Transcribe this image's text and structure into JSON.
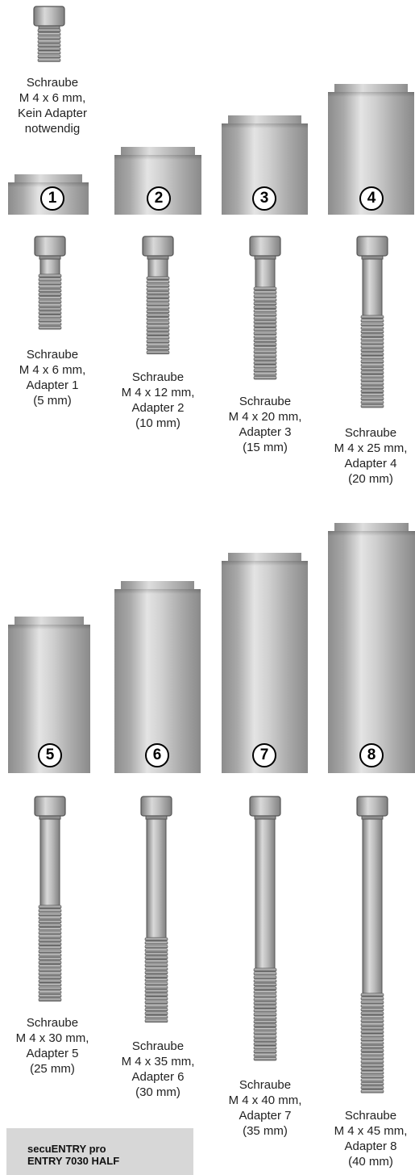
{
  "top_screw": {
    "caption": "Schraube\nM 4 x 6 mm,\nKein Adapter\nnotwendig"
  },
  "items": [
    {
      "number": "1",
      "caption": "Schraube\nM 4 x 6 mm,\nAdapter 1\n(5 mm)"
    },
    {
      "number": "2",
      "caption": "Schraube\nM 4 x 12 mm,\nAdapter 2\n(10 mm)"
    },
    {
      "number": "3",
      "caption": "Schraube\nM 4 x 20 mm,\nAdapter 3\n(15 mm)"
    },
    {
      "number": "4",
      "caption": "Schraube\nM 4 x 25 mm,\nAdapter 4\n(20 mm)"
    },
    {
      "number": "5",
      "caption": "Schraube\nM 4 x 30 mm,\nAdapter 5\n(25 mm)"
    },
    {
      "number": "6",
      "caption": "Schraube\nM 4 x 35 mm,\nAdapter 6\n(30 mm)"
    },
    {
      "number": "7",
      "caption": "Schraube\nM 4 x 40 mm,\nAdapter 7\n(35 mm)"
    },
    {
      "number": "8",
      "caption": "Schraube\nM 4 x 45 mm,\nAdapter 8\n(40 mm)"
    }
  ],
  "product": {
    "line1": "secuENTRY pro",
    "line2": "ENTRY 7030 HALF"
  }
}
